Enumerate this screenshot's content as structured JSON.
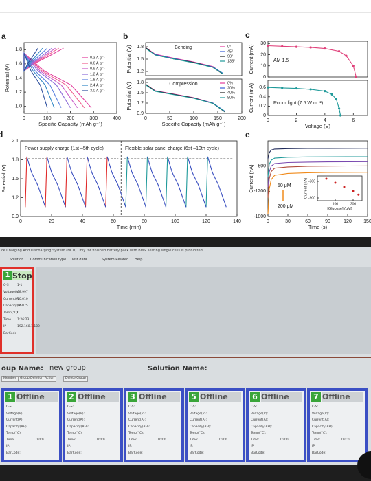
{
  "chart_data": [
    {
      "type": "line",
      "label": "a",
      "xlabel": "Specific Capacity (mAh g⁻¹)",
      "ylabel": "Potential (V)",
      "xlim": [
        0,
        400
      ],
      "ylim": [
        0.9,
        1.9
      ],
      "xticks": [
        0,
        100,
        200,
        300,
        400
      ],
      "yticks": [
        {
          "value": 1,
          "label": "1.0"
        },
        1.2,
        1.4,
        1.6,
        1.8
      ],
      "legend": "center right",
      "series": [
        {
          "name": "0.3 A g⁻¹",
          "color": "#e23c9c",
          "x": [
            170,
            102,
            42.5,
            0,
            0,
            87,
            203,
            290
          ],
          "values": [
            1.82,
            1.7,
            1.6,
            1.5,
            1.75,
            1.5,
            1.3,
            0.98
          ]
        },
        {
          "name": "0.6 A g⁻¹",
          "color": "#f0608e",
          "x": [
            150,
            90,
            37.5,
            0,
            0,
            78,
            182,
            260
          ],
          "values": [
            1.82,
            1.7,
            1.6,
            1.5,
            1.75,
            1.5,
            1.3,
            0.98
          ]
        },
        {
          "name": "0.9 A g⁻¹",
          "color": "#c85ac8",
          "x": [
            135,
            81,
            33.75,
            0,
            0,
            69,
            161,
            230
          ],
          "values": [
            1.82,
            1.7,
            1.6,
            1.5,
            1.75,
            1.5,
            1.3,
            0.98
          ]
        },
        {
          "name": "1.2 A g⁻¹",
          "color": "#8c6cd8",
          "x": [
            120,
            72,
            30,
            0,
            0,
            60,
            140,
            200
          ],
          "values": [
            1.82,
            1.7,
            1.6,
            1.5,
            1.75,
            1.5,
            1.3,
            0.98
          ]
        },
        {
          "name": "1.8 A g⁻¹",
          "color": "#5a80e0",
          "x": [
            100,
            60,
            25,
            0,
            0,
            48,
            112,
            160
          ],
          "values": [
            1.82,
            1.7,
            1.6,
            1.5,
            1.75,
            1.5,
            1.3,
            0.98
          ]
        },
        {
          "name": "2.4 A g⁻¹",
          "color": "#2f86c4",
          "x": [
            80,
            48,
            20,
            0,
            0,
            39,
            91,
            130
          ],
          "values": [
            1.82,
            1.7,
            1.6,
            1.5,
            1.75,
            1.5,
            1.3,
            0.98
          ]
        },
        {
          "name": "3.0 A g⁻¹",
          "color": "#2e4f9e",
          "x": [
            60,
            36,
            15,
            0,
            0,
            30,
            70,
            100
          ],
          "values": [
            1.82,
            1.7,
            1.6,
            1.5,
            1.75,
            1.5,
            1.3,
            0.98
          ]
        }
      ]
    },
    {
      "type": "line",
      "label": "b",
      "title": "Bending",
      "ylabel": "Potential (V)",
      "xlim": [
        0,
        200
      ],
      "ylim": [
        1.1,
        1.9
      ],
      "yticks": [
        1.2,
        1.5,
        1.8
      ],
      "legend": "upper right",
      "x": [
        0,
        20,
        60,
        100,
        140,
        160
      ],
      "series": [
        {
          "name": "0°",
          "color": "#e23c9c",
          "values": [
            1.78,
            1.62,
            1.52,
            1.43,
            1.32,
            1.15
          ]
        },
        {
          "name": "45°",
          "color": "#3a5fd8",
          "values": [
            1.77,
            1.61,
            1.51,
            1.42,
            1.31,
            1.16
          ]
        },
        {
          "name": "90°",
          "color": "#222222",
          "values": [
            1.78,
            1.6,
            1.5,
            1.42,
            1.3,
            1.14
          ]
        },
        {
          "name": "135°",
          "color": "#1f9a9a",
          "values": [
            1.76,
            1.6,
            1.5,
            1.41,
            1.3,
            1.15
          ]
        }
      ]
    },
    {
      "type": "line",
      "title": "Compression",
      "xlabel": "Specific Capacity (mAh g⁻¹)",
      "ylabel": "Potential (V)",
      "xlim": [
        0,
        200
      ],
      "ylim": [
        0.9,
        1.9
      ],
      "xticks": [
        0,
        50,
        100,
        150,
        200
      ],
      "yticks": [
        0.9,
        1.2,
        1.5,
        1.8
      ],
      "legend": "upper right",
      "x": [
        0,
        20,
        60,
        100,
        140,
        165
      ],
      "series": [
        {
          "name": "0%",
          "color": "#e23c9c",
          "values": [
            1.75,
            1.56,
            1.46,
            1.36,
            1.2,
            0.95
          ]
        },
        {
          "name": "20%",
          "color": "#3a5fd8",
          "values": [
            1.74,
            1.55,
            1.45,
            1.35,
            1.2,
            0.96
          ]
        },
        {
          "name": "40%",
          "color": "#222222",
          "values": [
            1.75,
            1.55,
            1.45,
            1.35,
            1.19,
            0.94
          ]
        },
        {
          "name": "80%",
          "color": "#1f9a9a",
          "values": [
            1.73,
            1.54,
            1.44,
            1.34,
            1.19,
            0.95
          ]
        }
      ]
    },
    {
      "type": "line",
      "label": "c",
      "ylabel": "Current (mA)",
      "markers": true,
      "xlim": [
        0,
        7
      ],
      "ylim": [
        0,
        32
      ],
      "yticks": [
        0,
        10,
        20,
        30
      ],
      "annotations": [
        {
          "text": "AM 1.5",
          "color": "#e0407a"
        }
      ],
      "series": [
        {
          "color": "#e0407a",
          "x": [
            0,
            1,
            2,
            3,
            4,
            5,
            5.5,
            6,
            6.2
          ],
          "values": [
            28,
            27.5,
            27,
            26.5,
            25.5,
            23,
            19,
            10,
            0
          ]
        }
      ]
    },
    {
      "type": "line",
      "xlabel": "Voltage (V)",
      "ylabel": "Current (mA)",
      "markers": true,
      "xlim": [
        0,
        7
      ],
      "ylim": [
        0,
        0.75
      ],
      "xticks": [
        0,
        2,
        4,
        6
      ],
      "yticks": [
        0,
        0.2,
        0.4,
        0.6
      ],
      "annotations": [
        {
          "text": "Room light (7.5 W m⁻²)",
          "color": "#1f9a9a"
        }
      ],
      "series": [
        {
          "color": "#1f9a9a",
          "x": [
            0,
            1,
            2,
            3,
            4,
            4.5,
            4.8,
            5,
            5.1
          ],
          "values": [
            0.6,
            0.59,
            0.58,
            0.56,
            0.52,
            0.45,
            0.35,
            0.15,
            0
          ]
        }
      ]
    },
    {
      "type": "line",
      "label": "d",
      "xlabel": "Time (min)",
      "ylabel": "Potential (V)",
      "xlim": [
        0,
        140
      ],
      "ylim": [
        0.9,
        2.1
      ],
      "xticks": [
        0,
        20,
        40,
        60,
        80,
        100,
        120,
        140
      ],
      "yticks": [
        0.9,
        1.2,
        1.5,
        1.8,
        2.1
      ],
      "annotations": [
        {
          "text": "Power supply charge (1st –5th cycle)",
          "color": "#e02a2a"
        },
        {
          "text": "Flexible solar panel charge (6st –10th cycle)",
          "color": "#1f9a9a"
        }
      ],
      "series": [
        {
          "color": "#e02a2a",
          "x": [
            3,
            4,
            null,
            16,
            17,
            null,
            29,
            30,
            null,
            42,
            43,
            null,
            55,
            56
          ],
          "values": [
            1.05,
            1.85,
            null,
            1.05,
            1.85,
            null,
            1.05,
            1.85,
            null,
            1.05,
            1.85,
            null,
            1.05,
            1.85
          ]
        },
        {
          "color": "#1f9a9a",
          "x": [
            68,
            69,
            null,
            81,
            82,
            null,
            94,
            95,
            null,
            107,
            108,
            null,
            120,
            121
          ],
          "values": [
            1.05,
            1.85,
            null,
            1.05,
            1.85,
            null,
            1.05,
            1.85,
            null,
            1.05,
            1.85,
            null,
            1.05,
            1.85
          ]
        },
        {
          "color": "#3a4fc0",
          "x": [
            4,
            7,
            11,
            16,
            null,
            17,
            20,
            24,
            29,
            null,
            30,
            33,
            37,
            42,
            null,
            43,
            46,
            50,
            55,
            null,
            56,
            59,
            63,
            68,
            null,
            69,
            72,
            76,
            81,
            null,
            82,
            85,
            89,
            94,
            null,
            95,
            98,
            102,
            107,
            null,
            108,
            111,
            115,
            120,
            null,
            121,
            124,
            128,
            133
          ],
          "values": [
            1.85,
            1.6,
            1.4,
            1.05,
            null,
            1.85,
            1.6,
            1.4,
            1.05,
            null,
            1.85,
            1.6,
            1.4,
            1.05,
            null,
            1.85,
            1.6,
            1.4,
            1.05,
            null,
            1.85,
            1.6,
            1.4,
            1.05,
            null,
            1.85,
            1.6,
            1.4,
            1.05,
            null,
            1.85,
            1.6,
            1.4,
            1.05,
            null,
            1.85,
            1.6,
            1.4,
            1.05,
            null,
            1.85,
            1.6,
            1.4,
            1.05,
            null,
            1.85,
            1.6,
            1.4,
            1.05
          ]
        }
      ]
    },
    {
      "type": "line",
      "label": "e",
      "xlabel": "Time (s)",
      "ylabel": "Current (nA)",
      "xlim": [
        0,
        150
      ],
      "ylim": [
        -1800,
        0
      ],
      "xticks": [
        0,
        30,
        60,
        90,
        120,
        150
      ],
      "yticks": [
        -1800,
        -1200,
        -600
      ],
      "annotations": [
        {
          "text": "50 μM",
          "color": "#2a2f8a"
        },
        {
          "text": "200 μM",
          "color": "#f08a1a"
        }
      ],
      "x": [
        0,
        2,
        5,
        10,
        30,
        60,
        90,
        120,
        150
      ],
      "series": [
        {
          "color": "#1f2a5a",
          "values": [
            -420,
            -280,
            -220,
            -195,
            -185,
            -180,
            -178,
            -176,
            -175
          ]
        },
        {
          "color": "#1f9a9a",
          "values": [
            -850,
            -560,
            -460,
            -410,
            -390,
            -382,
            -380,
            -378,
            -376
          ]
        },
        {
          "color": "#7a4ab0",
          "values": [
            -1100,
            -740,
            -600,
            -540,
            -515,
            -505,
            -500,
            -498,
            -496
          ]
        },
        {
          "color": "#b04a3a",
          "values": [
            -1350,
            -900,
            -730,
            -650,
            -620,
            -605,
            -600,
            -598,
            -596
          ]
        },
        {
          "color": "#f08a1a",
          "values": [
            -1750,
            -1150,
            -920,
            -820,
            -775,
            -760,
            -752,
            -750,
            -748
          ]
        }
      ]
    },
    {
      "type": "scatter",
      "xlabel": "[Glucose] (μM)",
      "ylabel": "Current (nA)",
      "xlim": [
        0,
        250
      ],
      "ylim": [
        -1000,
        -100
      ],
      "xticks": [
        100,
        200
      ],
      "yticks": [
        -900,
        -300
      ],
      "series": [
        {
          "color": "#cc2222",
          "x": [
            50,
            100,
            150,
            200,
            230
          ],
          "values": [
            -200,
            -350,
            -500,
            -650,
            -780
          ]
        }
      ]
    }
  ],
  "screen": {
    "window_title": "ck Charging And Discharging System (NCD) Only for finished battery pack with BMS, Testing single cells is prohibited!",
    "menu": [
      "Solution",
      "Communication type",
      "Test data",
      "System Related",
      "Help"
    ],
    "active_channel": {
      "number": "1",
      "status": "Stop",
      "rows": [
        [
          "C-S",
          "1-1"
        ],
        [
          "Voltage(V)",
          "48.997"
        ],
        [
          "Current(A)",
          "10.010"
        ],
        [
          "Capacity(AH)",
          "14.375"
        ],
        [
          "Temp(°C)",
          "0"
        ],
        [
          "Time",
          "1:26:23"
        ],
        [
          "IP",
          "192.168.1.100"
        ],
        [
          "BarCode"
        ]
      ]
    },
    "group_label": "oup Name:",
    "group_name": "new group",
    "solution_label": "Solution Name:",
    "buttons": [
      "Member",
      "Group Deletion",
      "Action",
      "Delete Group"
    ],
    "channel_fields": [
      "C-S:",
      "Voltage(V):",
      "Current(A):",
      "Capacity(AH):",
      "Temp(°C):",
      "Time:",
      "IP:",
      "BarCode:"
    ],
    "channels": [
      {
        "number": "1",
        "status": "Offline",
        "time": "0:0:0"
      },
      {
        "number": "2",
        "status": "Offline",
        "time": "0:0:0"
      },
      {
        "number": "3",
        "status": "Offline",
        "time": "0:0:0"
      },
      {
        "number": "5",
        "status": "Offline",
        "time": "0:0:0"
      },
      {
        "number": "6",
        "status": "Offline",
        "time": "0:0:0"
      },
      {
        "number": "7",
        "status": "Offline",
        "time": "0:0:0"
      }
    ]
  }
}
